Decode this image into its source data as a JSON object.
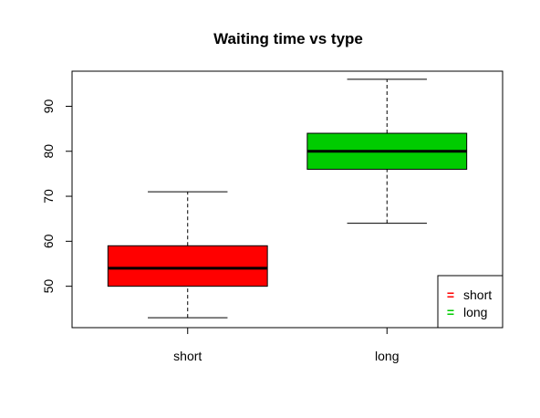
{
  "chart_data": {
    "type": "box",
    "title": "Waiting time vs type",
    "xlabel": "",
    "ylabel": "",
    "categories": [
      "short",
      "long"
    ],
    "series": [
      {
        "name": "short",
        "color": "#ff0000",
        "whisker_low": 43,
        "q1": 50,
        "median": 54,
        "q3": 59,
        "whisker_high": 71
      },
      {
        "name": "long",
        "color": "#00cc00",
        "whisker_low": 64,
        "q1": 76,
        "median": 80,
        "q3": 84,
        "whisker_high": 96
      }
    ],
    "ylim": [
      40.8,
      97.8
    ],
    "yticks": [
      50,
      60,
      70,
      80,
      90
    ],
    "grid": false,
    "legend": {
      "placement": "bottom-right",
      "symbol": "=",
      "entries": [
        {
          "label": "short",
          "color": "#ff0000"
        },
        {
          "label": "long",
          "color": "#00cc00"
        }
      ]
    }
  }
}
